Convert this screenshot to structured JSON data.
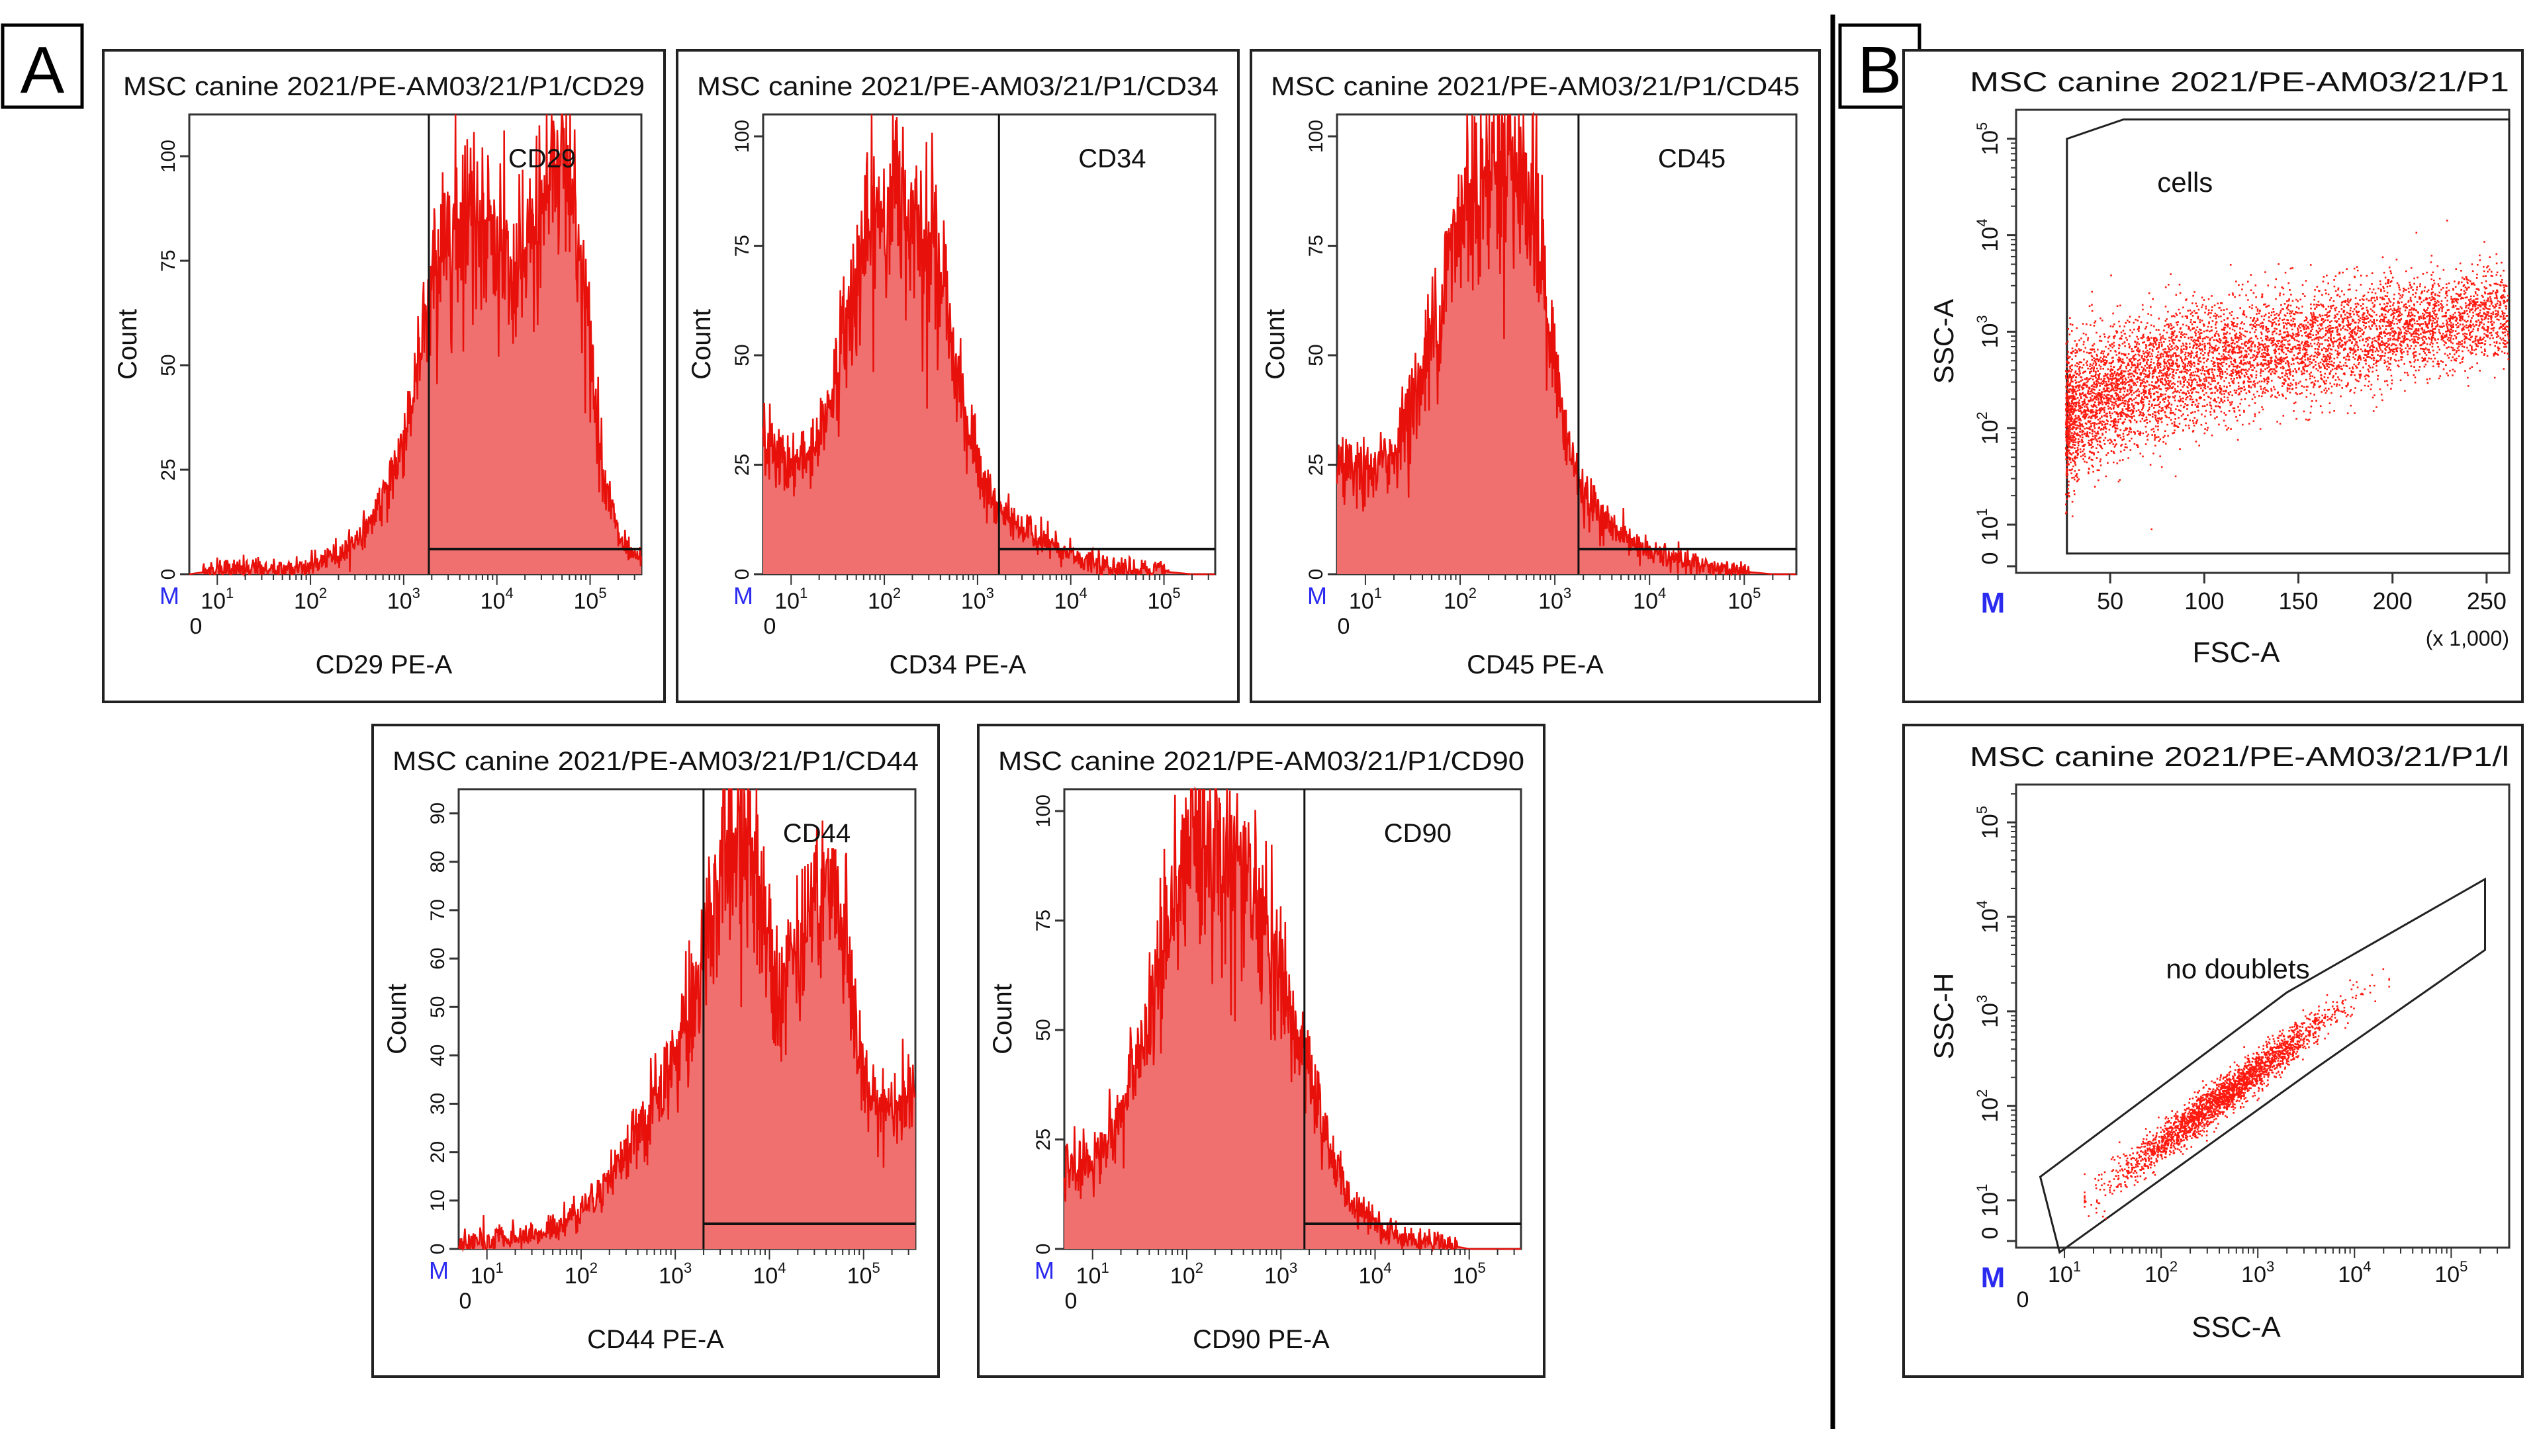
{
  "panel_labels": {
    "a": "A",
    "b": "B"
  },
  "colors": {
    "fill": "#f07070",
    "line": "#e8100a",
    "dot": "#ff1a10",
    "axis": "#333333",
    "marker": "#2a2af0",
    "frame": "#222222"
  },
  "chart_data": [
    {
      "id": "cd29",
      "type": "histogram",
      "title": "MSC canine 2021/PE-AM03/21/P1/CD29",
      "xlabel": "CD29 PE-A",
      "ylabel": "Count",
      "gate_label": "CD29",
      "marker_label": "M",
      "x_tick_labels": [
        "0",
        "10",
        "10",
        "10",
        "10",
        "10"
      ],
      "x_tick_exponents": [
        "",
        "1",
        "2",
        "3",
        "4",
        "5"
      ],
      "y_tick_labels": [
        "0",
        "25",
        "50",
        "75",
        "100"
      ],
      "ylim": [
        0,
        110
      ],
      "gate_start_log": 3.27,
      "profile": [
        [
          0.7,
          0
        ],
        [
          1.0,
          1
        ],
        [
          1.5,
          1
        ],
        [
          2.0,
          2
        ],
        [
          2.4,
          6
        ],
        [
          2.7,
          14
        ],
        [
          2.95,
          28
        ],
        [
          3.15,
          48
        ],
        [
          3.35,
          74
        ],
        [
          3.55,
          85
        ],
        [
          3.8,
          88
        ],
        [
          4.0,
          78
        ],
        [
          4.15,
          68
        ],
        [
          4.3,
          74
        ],
        [
          4.5,
          90
        ],
        [
          4.68,
          104
        ],
        [
          4.8,
          94
        ],
        [
          4.98,
          58
        ],
        [
          5.12,
          28
        ],
        [
          5.3,
          9
        ],
        [
          5.45,
          4
        ]
      ]
    },
    {
      "id": "cd34",
      "type": "histogram",
      "title": "MSC canine 2021/PE-AM03/21/P1/CD34",
      "xlabel": "CD34 PE-A",
      "ylabel": "Count",
      "gate_label": "CD34",
      "marker_label": "M",
      "x_tick_labels": [
        "0",
        "10",
        "10",
        "10",
        "10",
        "10"
      ],
      "x_tick_exponents": [
        "",
        "1",
        "2",
        "3",
        "4",
        "5"
      ],
      "y_tick_labels": [
        "0",
        "25",
        "50",
        "75",
        "100"
      ],
      "ylim": [
        0,
        105
      ],
      "gate_start_log": 3.23,
      "profile": [
        [
          0.7,
          30
        ],
        [
          1.0,
          24
        ],
        [
          1.3,
          30
        ],
        [
          1.55,
          52
        ],
        [
          1.75,
          72
        ],
        [
          1.95,
          82
        ],
        [
          2.2,
          86
        ],
        [
          2.45,
          80
        ],
        [
          2.65,
          64
        ],
        [
          2.85,
          38
        ],
        [
          3.05,
          20
        ],
        [
          3.3,
          13
        ],
        [
          3.6,
          9
        ],
        [
          3.9,
          5
        ],
        [
          4.3,
          2
        ],
        [
          4.8,
          1
        ],
        [
          5.3,
          0
        ]
      ]
    },
    {
      "id": "cd45",
      "type": "histogram",
      "title": "MSC canine 2021/PE-AM03/21/P1/CD45",
      "xlabel": "CD45 PE-A",
      "ylabel": "Count",
      "gate_label": "CD45",
      "marker_label": "M",
      "x_tick_labels": [
        "0",
        "10",
        "10",
        "10",
        "10",
        "10"
      ],
      "x_tick_exponents": [
        "",
        "1",
        "2",
        "3",
        "4",
        "5"
      ],
      "y_tick_labels": [
        "0",
        "25",
        "50",
        "75",
        "100"
      ],
      "ylim": [
        0,
        105
      ],
      "gate_start_log": 3.25,
      "profile": [
        [
          0.7,
          24
        ],
        [
          1.0,
          22
        ],
        [
          1.3,
          28
        ],
        [
          1.6,
          45
        ],
        [
          1.85,
          68
        ],
        [
          2.1,
          88
        ],
        [
          2.35,
          96
        ],
        [
          2.55,
          96
        ],
        [
          2.78,
          84
        ],
        [
          2.95,
          55
        ],
        [
          3.1,
          32
        ],
        [
          3.3,
          18
        ],
        [
          3.55,
          12
        ],
        [
          3.9,
          6
        ],
        [
          4.3,
          3
        ],
        [
          4.8,
          1
        ],
        [
          5.3,
          0
        ]
      ]
    },
    {
      "id": "cd44",
      "type": "histogram",
      "title": "MSC canine 2021/PE-AM03/21/P1/CD44",
      "xlabel": "CD44 PE-A",
      "ylabel": "Count",
      "gate_label": "CD44",
      "marker_label": "M",
      "x_tick_labels": [
        "0",
        "10",
        "10",
        "10",
        "10",
        "10"
      ],
      "x_tick_exponents": [
        "",
        "1",
        "2",
        "3",
        "4",
        "5"
      ],
      "y_tick_labels": [
        "0",
        "10",
        "20",
        "30",
        "40",
        "50",
        "60",
        "70",
        "80",
        "90"
      ],
      "ylim": [
        0,
        95
      ],
      "gate_start_log": 3.3,
      "profile": [
        [
          0.7,
          1
        ],
        [
          1.2,
          2
        ],
        [
          1.7,
          4
        ],
        [
          2.1,
          10
        ],
        [
          2.5,
          20
        ],
        [
          2.9,
          34
        ],
        [
          3.15,
          48
        ],
        [
          3.35,
          66
        ],
        [
          3.55,
          84
        ],
        [
          3.75,
          86
        ],
        [
          3.95,
          70
        ],
        [
          4.1,
          54
        ],
        [
          4.25,
          62
        ],
        [
          4.5,
          72
        ],
        [
          4.65,
          74
        ],
        [
          4.8,
          64
        ],
        [
          4.95,
          42
        ],
        [
          5.05,
          30
        ]
      ]
    },
    {
      "id": "cd90",
      "type": "histogram",
      "title": "MSC canine 2021/PE-AM03/21/P1/CD90",
      "xlabel": "CD90 PE-A",
      "ylabel": "Count",
      "gate_label": "CD90",
      "marker_label": "M",
      "x_tick_labels": [
        "0",
        "10",
        "10",
        "10",
        "10",
        "10"
      ],
      "x_tick_exponents": [
        "",
        "1",
        "2",
        "3",
        "4",
        "5"
      ],
      "y_tick_labels": [
        "0",
        "25",
        "50",
        "75",
        "100"
      ],
      "ylim": [
        0,
        105
      ],
      "gate_start_log": 3.25,
      "profile": [
        [
          0.7,
          18
        ],
        [
          1.0,
          20
        ],
        [
          1.3,
          30
        ],
        [
          1.6,
          52
        ],
        [
          1.85,
          78
        ],
        [
          2.1,
          94
        ],
        [
          2.35,
          94
        ],
        [
          2.6,
          84
        ],
        [
          2.85,
          72
        ],
        [
          3.1,
          54
        ],
        [
          3.3,
          38
        ],
        [
          3.5,
          24
        ],
        [
          3.75,
          10
        ],
        [
          4.1,
          4
        ],
        [
          4.5,
          2
        ],
        [
          5.0,
          0
        ]
      ]
    },
    {
      "id": "fsc_ssc",
      "type": "scatter",
      "title": "MSC canine 2021/PE-AM03/21/P1",
      "xlabel": "FSC-A",
      "ylabel": "SSC-A",
      "x_unit_note": "(x 1,000)",
      "gate_label": "cells",
      "marker_label": "M",
      "x_tick_labels": [
        "50",
        "100",
        "150",
        "200",
        "250"
      ],
      "y_tick_labels": [
        "0",
        "10",
        "10",
        "10",
        "10",
        "10"
      ],
      "y_tick_exponents": [
        "",
        "1",
        "2",
        "3",
        "4",
        "5"
      ],
      "xlim": [
        0,
        262
      ],
      "ylim_log": [
        0.5,
        5.3
      ],
      "gate_polygon": [
        [
          27,
          0.7
        ],
        [
          27,
          5.0
        ],
        [
          57,
          5.2
        ],
        [
          262,
          5.2
        ],
        [
          262,
          0.7
        ]
      ],
      "cloud": {
        "points": 6500,
        "x_range": [
          26,
          262
        ],
        "log_y_start": 2.0,
        "log_y_end": 3.2,
        "spread": 0.35
      }
    },
    {
      "id": "singlets",
      "type": "scatter",
      "title": "MSC canine 2021/PE-AM03/21/P1/l",
      "xlabel": "SSC-A",
      "ylabel": "SSC-H",
      "gate_label": "no doublets",
      "marker_label": "M",
      "x_tick_labels": [
        "0",
        "10",
        "10",
        "10",
        "10",
        "10"
      ],
      "x_tick_exponents": [
        "",
        "1",
        "2",
        "3",
        "4",
        "5"
      ],
      "y_tick_labels": [
        "0",
        "10",
        "10",
        "10",
        "10",
        "10"
      ],
      "y_tick_exponents": [
        "",
        "1",
        "2",
        "3",
        "4",
        "5"
      ],
      "xlim_log": [
        0.5,
        5.6
      ],
      "ylim_log": [
        0.5,
        5.4
      ],
      "gate_polygon": [
        [
          0.75,
          1.25
        ],
        [
          3.3,
          3.2
        ],
        [
          5.35,
          4.4
        ],
        [
          5.35,
          3.65
        ],
        [
          3.6,
          2.4
        ],
        [
          0.95,
          0.45
        ]
      ],
      "cloud": {
        "points": 7000,
        "log_x_range": [
          1.2,
          4.35
        ],
        "slope": 0.78,
        "intercept": 0.05,
        "spread": 0.1
      }
    }
  ]
}
